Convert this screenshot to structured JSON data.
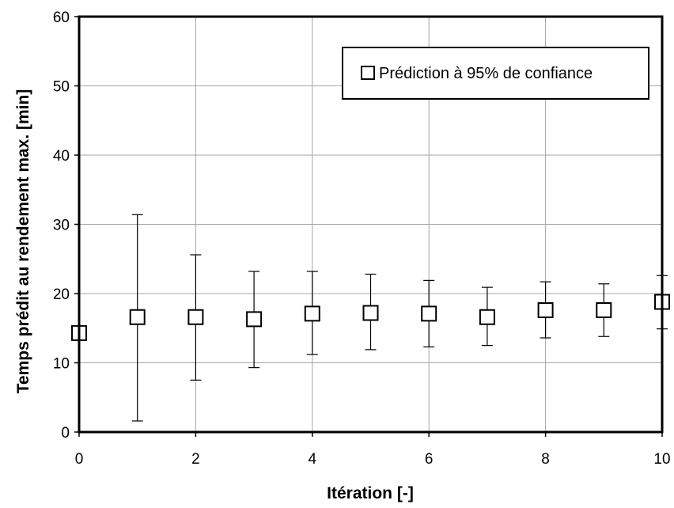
{
  "chart_data": {
    "type": "scatter",
    "xlabel": "Itération [-]",
    "ylabel": "Temps prédit au rendement max. [min]",
    "xlim": [
      0,
      10
    ],
    "ylim": [
      0,
      60
    ],
    "x_ticks": [
      "0",
      "2",
      "4",
      "6",
      "8",
      "10"
    ],
    "y_ticks": [
      "0",
      "10",
      "20",
      "30",
      "40",
      "50",
      "60"
    ],
    "grid": true,
    "legend_position": "top-right",
    "marker": "open-square",
    "series": [
      {
        "name": "Prédiction à 95% de confiance",
        "color": "#000000",
        "points": [
          {
            "x": 0,
            "y": 14.3
          },
          {
            "x": 1,
            "y": 16.6,
            "low": 1.6,
            "high": 31.4
          },
          {
            "x": 2,
            "y": 16.6,
            "low": 7.5,
            "high": 25.6
          },
          {
            "x": 3,
            "y": 16.3,
            "low": 9.3,
            "high": 23.2
          },
          {
            "x": 4,
            "y": 17.1,
            "low": 11.2,
            "high": 23.2
          },
          {
            "x": 5,
            "y": 17.2,
            "low": 11.9,
            "high": 22.8
          },
          {
            "x": 6,
            "y": 17.1,
            "low": 12.3,
            "high": 21.9
          },
          {
            "x": 7,
            "y": 16.6,
            "low": 12.5,
            "high": 20.9
          },
          {
            "x": 8,
            "y": 17.6,
            "low": 13.6,
            "high": 21.7
          },
          {
            "x": 9,
            "y": 17.6,
            "low": 13.8,
            "high": 21.4
          },
          {
            "x": 10,
            "y": 18.8,
            "low": 14.9,
            "high": 22.6
          }
        ]
      }
    ]
  }
}
